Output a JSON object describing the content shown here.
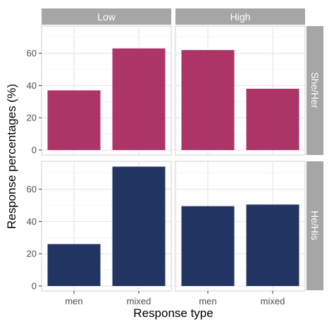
{
  "chart_data": {
    "type": "bar",
    "xlabel": "Response type",
    "ylabel": "Response percentages (%)",
    "categories": [
      "men",
      "mixed"
    ],
    "col_facets": [
      "Low",
      "High"
    ],
    "row_facets": [
      "She/Her",
      "He/His"
    ],
    "panels": [
      {
        "col": "Low",
        "row": "She/Her",
        "values": [
          37,
          63
        ]
      },
      {
        "col": "High",
        "row": "She/Her",
        "values": [
          62,
          38
        ]
      },
      {
        "col": "Low",
        "row": "He/His",
        "values": [
          26,
          74
        ]
      },
      {
        "col": "High",
        "row": "He/His",
        "values": [
          49.5,
          50.5
        ]
      }
    ],
    "y_ticks": [
      "0",
      "20",
      "40",
      "60"
    ],
    "ylim": [
      0,
      76
    ],
    "grid": true,
    "colors": {
      "She/Her": "#AD3466",
      "He/His": "#223462"
    }
  }
}
